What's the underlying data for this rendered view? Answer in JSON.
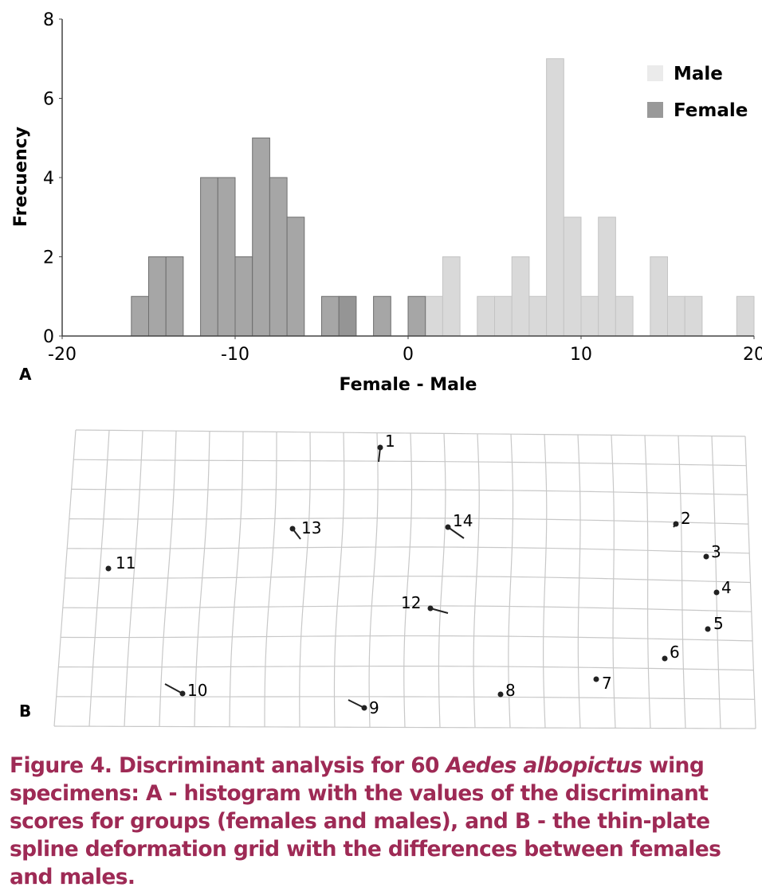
{
  "chart_data": [
    {
      "type": "bar",
      "panel_label": "A",
      "title": "",
      "xlabel": "Female - Male",
      "ylabel": "Frecuency",
      "xlim": [
        -20,
        20
      ],
      "ylim": [
        0,
        8
      ],
      "xticks": [
        "-20",
        "-10",
        "0",
        "10",
        "20"
      ],
      "xtick_values": [
        -20,
        -10,
        0,
        10,
        20
      ],
      "yticks": [
        "0",
        "2",
        "4",
        "6",
        "8"
      ],
      "ytick_values": [
        0,
        2,
        4,
        6,
        8
      ],
      "bin_width": 1,
      "legend_position": "top-right",
      "series": [
        {
          "name": "Male",
          "color": "#d9d9d9",
          "bins": [
            1,
            2,
            4,
            5,
            6,
            7,
            8,
            9,
            10,
            11,
            12,
            14,
            15,
            16,
            19
          ],
          "values": [
            1,
            2,
            1,
            1,
            2,
            1,
            7,
            3,
            1,
            3,
            1,
            2,
            1,
            1,
            1
          ]
        },
        {
          "name": "Female",
          "color": "#a6a6a6",
          "bins": [
            -16,
            -15,
            -14,
            -12,
            -11,
            -10,
            -9,
            -8,
            -7,
            -5,
            -4,
            -2,
            0
          ],
          "values": [
            1,
            2,
            2,
            4,
            4,
            2,
            5,
            4,
            3,
            1,
            1,
            1,
            1
          ]
        }
      ]
    },
    {
      "type": "diagram",
      "panel_label": "B",
      "landmarks": [
        "1",
        "2",
        "3",
        "4",
        "5",
        "6",
        "7",
        "8",
        "9",
        "10",
        "11",
        "12",
        "13",
        "14"
      ]
    }
  ],
  "caption": {
    "prefix": "Figure 4. Discriminant analysis for 60 ",
    "species": "Aedes albopictus",
    "suffix": " wing specimens: A - histogram with the values of the discriminant scores for groups (females and males), and B - the thin-plate spline deformation grid with the differences between females and males."
  }
}
